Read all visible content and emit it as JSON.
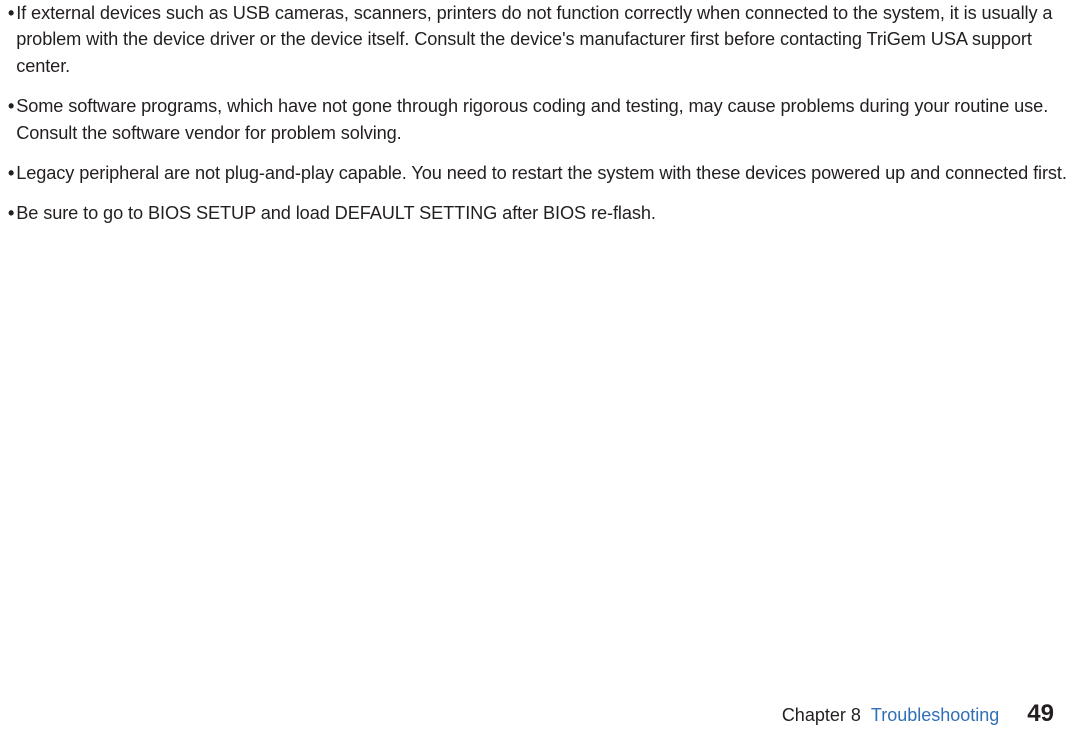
{
  "bullets": [
    {
      "marker": "•",
      "text": "If external devices such as USB cameras, scanners, printers do not function correctly when connected to the system, it is usually a problem with the device driver or the device itself. Consult the device's manufacturer first before contacting TriGem USA support center."
    },
    {
      "marker": "•",
      "text": "Some software programs, which have not gone through rigorous coding and testing, may cause problems during your routine use. Consult the software vendor for problem solving."
    },
    {
      "marker": "•",
      "text": "Legacy peripheral are not plug-and-play capable. You need to restart the system with these devices powered up and connected first."
    },
    {
      "marker": "•",
      "text": "Be sure to go to BIOS SETUP and load DEFAULT SETTING after BIOS re-flash."
    }
  ],
  "footer": {
    "chapter_label": "Chapter 8",
    "chapter_title": "Troubleshooting",
    "page_number": "49"
  },
  "colors": {
    "text": "#231f20",
    "accent": "#2f6fb5",
    "background": "#ffffff"
  }
}
